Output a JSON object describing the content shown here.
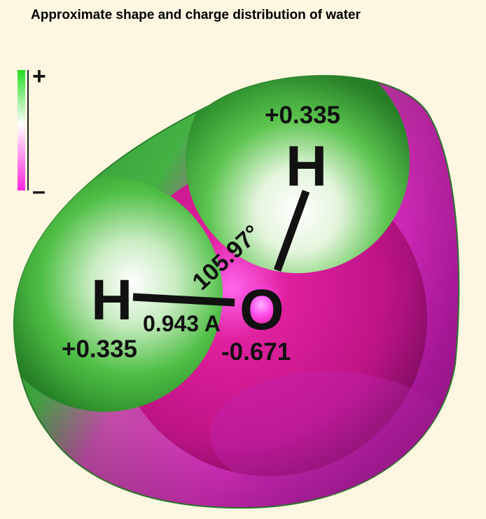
{
  "title": "Approximate shape and charge distribution of water",
  "legend": {
    "plus": "+",
    "minus": "–",
    "colors": {
      "positive": "#22dd22",
      "neutral": "#ffffff",
      "negative": "#ff22dd"
    }
  },
  "atoms": {
    "oxygen": {
      "symbol": "O",
      "charge": "-0.671"
    },
    "hydrogen_left": {
      "symbol": "H",
      "charge": "+0.335"
    },
    "hydrogen_top": {
      "symbol": "H",
      "charge": "+0.335"
    }
  },
  "bond_length": "0.943 A",
  "bond_angle": "105.97°",
  "colors": {
    "green_dark": "#1e7f1e",
    "green_mid": "#3fb03f",
    "magenta_dark": "#9b1480",
    "magenta_mid": "#d21aa6",
    "background": "#fdf7e1"
  }
}
